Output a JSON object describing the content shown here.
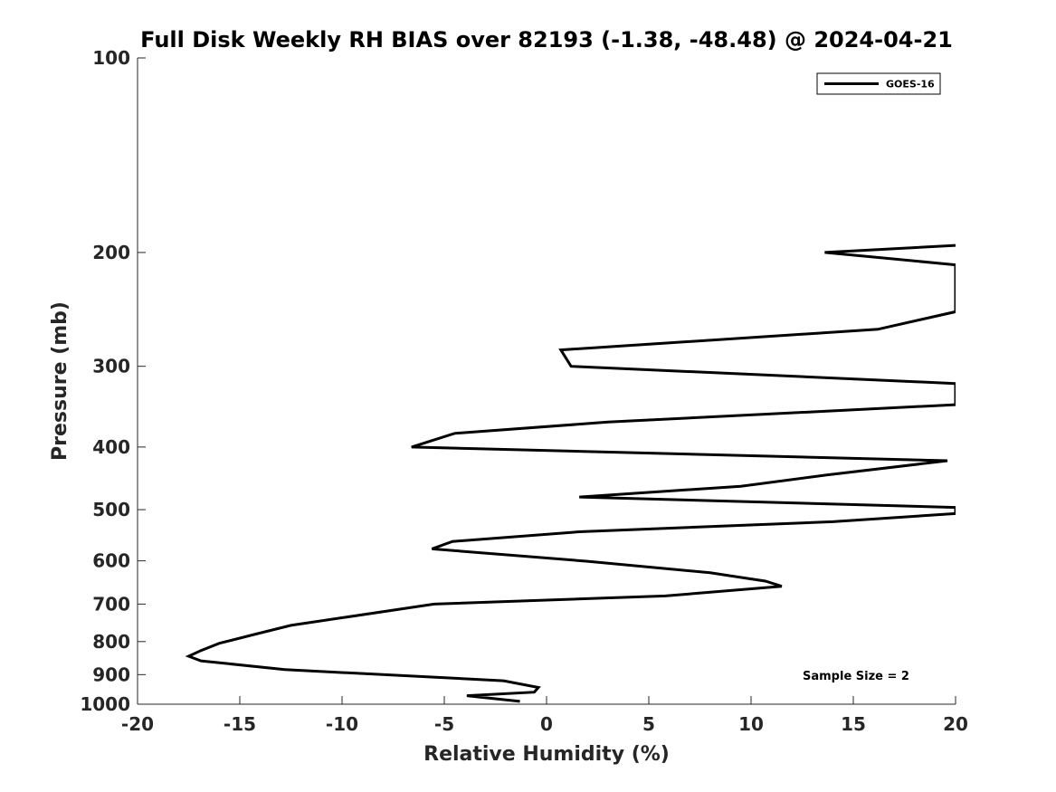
{
  "chart_data": {
    "type": "line",
    "title": "Full Disk Weekly RH BIAS over 82193 (-1.38, -48.48) @ 2024-04-21",
    "xlabel": "Relative Humidity (%)",
    "ylabel": "Pressure (mb)",
    "xlim": [
      -20,
      20
    ],
    "ylim": [
      100,
      1000
    ],
    "y_scale": "log",
    "y_reversed": true,
    "x_ticks": [
      -20,
      -15,
      -10,
      -5,
      0,
      5,
      10,
      15,
      20
    ],
    "y_ticks": [
      100,
      200,
      300,
      400,
      500,
      600,
      700,
      800,
      900,
      1000
    ],
    "grid": false,
    "legend_position": "top-right",
    "series": [
      {
        "name": "GOES-16",
        "color": "#000000",
        "points": [
          [
            20.0,
            195
          ],
          [
            13.6,
            200
          ],
          [
            20.0,
            209
          ],
          [
            20.0,
            247
          ],
          [
            16.2,
            263
          ],
          [
            0.7,
            283
          ],
          [
            1.2,
            300
          ],
          [
            20.0,
            319
          ],
          [
            20.0,
            344
          ],
          [
            3.0,
            366
          ],
          [
            -4.5,
            381
          ],
          [
            -6.6,
            400
          ],
          [
            19.6,
            420
          ],
          [
            13.7,
            442
          ],
          [
            9.5,
            460
          ],
          [
            1.6,
            478
          ],
          [
            20.0,
            496
          ],
          [
            20.0,
            507
          ],
          [
            14.0,
            522
          ],
          [
            1.6,
            541
          ],
          [
            -4.6,
            560
          ],
          [
            -5.6,
            575
          ],
          [
            2.0,
            601
          ],
          [
            8.0,
            626
          ],
          [
            10.7,
            645
          ],
          [
            11.5,
            657
          ],
          [
            5.8,
            680
          ],
          [
            -5.5,
            700
          ],
          [
            -12.5,
            755
          ],
          [
            -14.3,
            780
          ],
          [
            -16.0,
            805
          ],
          [
            -16.9,
            826
          ],
          [
            -17.5,
            843
          ],
          [
            -16.9,
            857
          ],
          [
            -12.8,
            884
          ],
          [
            -2.1,
            920
          ],
          [
            -0.4,
            942
          ],
          [
            -0.6,
            958
          ],
          [
            -3.9,
            970
          ],
          [
            -1.3,
            990
          ]
        ]
      }
    ],
    "annotation": "Sample Size = 2"
  }
}
